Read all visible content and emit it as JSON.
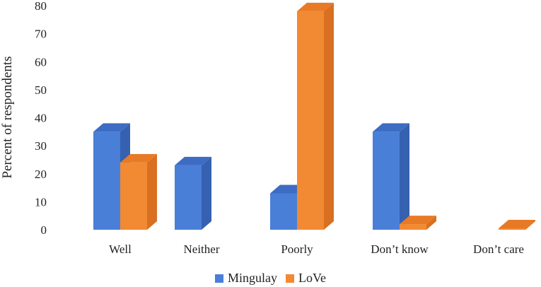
{
  "chart_data": {
    "type": "bar",
    "style": "3d-clustered-column",
    "ylabel": "Percent of respondents",
    "ylim": [
      0,
      80
    ],
    "yticks": [
      0,
      10,
      20,
      30,
      40,
      50,
      60,
      70,
      80
    ],
    "grid": false,
    "legend_position": "bottom",
    "categories": [
      "Well",
      "Neither",
      "Poorly",
      "Don’t know",
      "Don’t care"
    ],
    "series": [
      {
        "name": "Mingulay",
        "color": "#4a7fd8",
        "side": "#3561b0",
        "top": "#3d6cc4",
        "values": [
          35,
          23,
          13,
          35,
          0
        ]
      },
      {
        "name": "LoVe",
        "color": "#f28a33",
        "side": "#d96f20",
        "top": "#e97a25",
        "values": [
          24,
          0,
          78,
          2,
          0.5
        ]
      }
    ]
  }
}
